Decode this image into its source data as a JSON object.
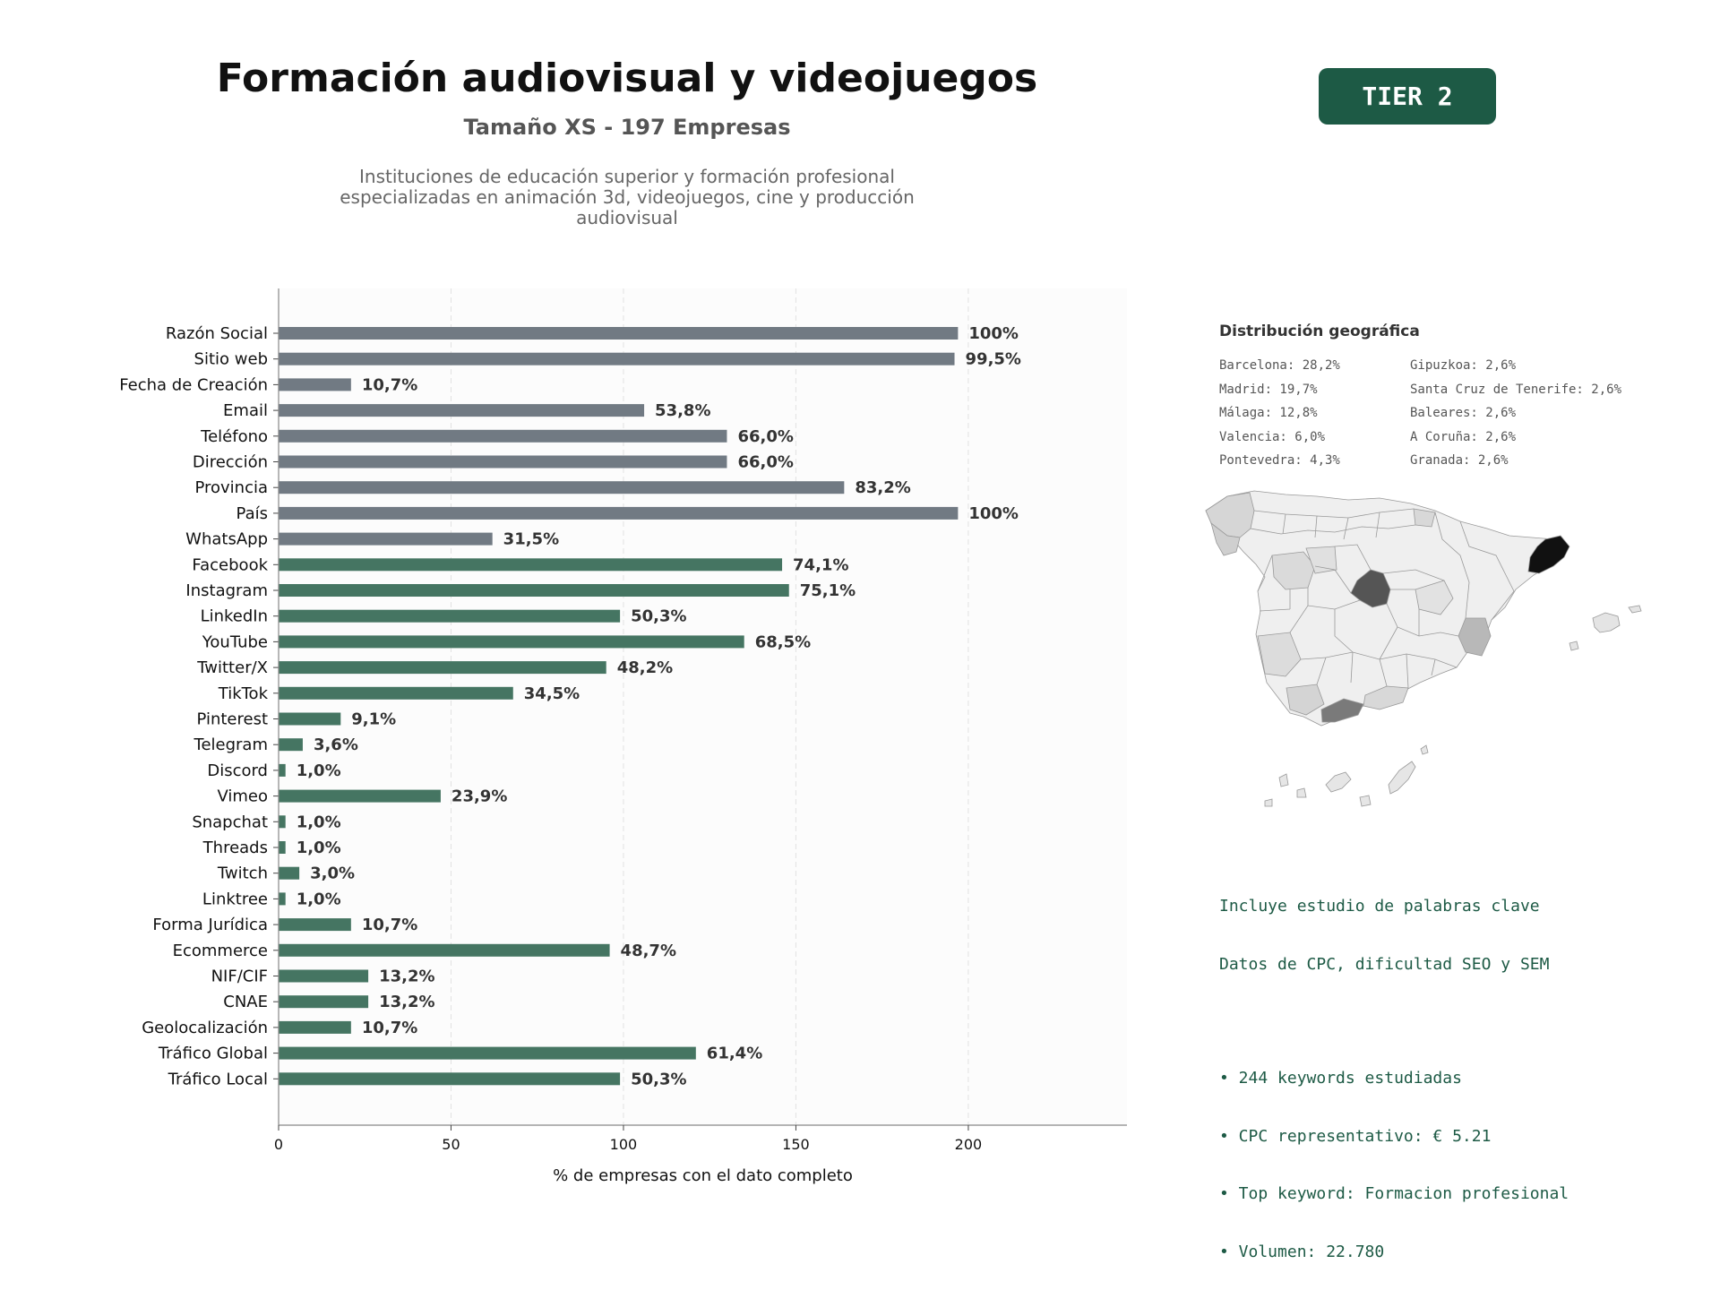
{
  "header": {
    "title": "Formación audiovisual y videojuegos",
    "subtitle": "Tamaño XS - 197 Empresas",
    "description_lines": [
      "Instituciones de educación superior y formación profesional",
      "especializadas en animación 3d, videojuegos, cine y producción",
      "audiovisual"
    ],
    "tier_label": "TIER 2"
  },
  "colors": {
    "gray_bar": "#717a83",
    "green_bar": "#457562",
    "accent": "#1d5a45"
  },
  "chart_data": {
    "type": "bar",
    "orientation": "horizontal",
    "xlabel": "% de empresas con el dato completo",
    "xlim": [
      0,
      246
    ],
    "xticks": [
      0,
      50,
      100,
      150,
      200
    ],
    "grid": "vertical dashed",
    "categories": [
      "Razón Social",
      "Sitio web",
      "Fecha de Creación",
      "Email",
      "Teléfono",
      "Dirección",
      "Provincia",
      "País",
      "WhatsApp",
      "Facebook",
      "Instagram",
      "LinkedIn",
      "YouTube",
      "Twitter/X",
      "TikTok",
      "Pinterest",
      "Telegram",
      "Discord",
      "Vimeo",
      "Snapchat",
      "Threads",
      "Twitch",
      "Linktree",
      "Forma Jurídica",
      "Ecommerce",
      "NIF/CIF",
      "CNAE",
      "Geolocalización",
      "Tráfico Global",
      "Tráfico Local"
    ],
    "values": [
      197,
      196,
      21,
      106,
      130,
      130,
      164,
      197,
      62,
      146,
      148,
      99,
      135,
      95,
      68,
      18,
      7,
      2,
      47,
      2,
      2,
      6,
      2,
      21,
      96,
      26,
      26,
      21,
      121,
      99
    ],
    "labels": [
      "100%",
      "99,5%",
      "10,7%",
      "53,8%",
      "66,0%",
      "66,0%",
      "83,2%",
      "100%",
      "31,5%",
      "74,1%",
      "75,1%",
      "50,3%",
      "68,5%",
      "48,2%",
      "34,5%",
      "9,1%",
      "3,6%",
      "1,0%",
      "23,9%",
      "1,0%",
      "1,0%",
      "3,0%",
      "1,0%",
      "10,7%",
      "48,7%",
      "13,2%",
      "13,2%",
      "10,7%",
      "61,4%",
      "50,3%"
    ],
    "color_groups": [
      "gray",
      "gray",
      "gray",
      "gray",
      "gray",
      "gray",
      "gray",
      "gray",
      "gray",
      "green",
      "green",
      "green",
      "green",
      "green",
      "green",
      "green",
      "green",
      "green",
      "green",
      "green",
      "green",
      "green",
      "green",
      "green",
      "green",
      "green",
      "green",
      "green",
      "green",
      "green"
    ]
  },
  "geo": {
    "title": "Distribución geográfica",
    "left_column": [
      "Barcelona: 28,2%",
      "Madrid: 19,7%",
      "Málaga: 12,8%",
      "Valencia: 6,0%",
      "Pontevedra: 4,3%"
    ],
    "right_column": [
      "Gipuzkoa: 2,6%",
      "Santa Cruz de Tenerife: 2,6%",
      "Baleares: 2,6%",
      "A Coruña: 2,6%",
      "Granada: 2,6%"
    ]
  },
  "keywords": {
    "intro_lines": [
      "Incluye estudio de palabras clave",
      "Datos de CPC, dificultad SEO y SEM"
    ],
    "bullets": [
      "• 244 keywords estudiadas",
      "• CPC representativo: € 5.21",
      "• Top keyword: Formacion profesional",
      "• Volumen: 22.780"
    ]
  }
}
